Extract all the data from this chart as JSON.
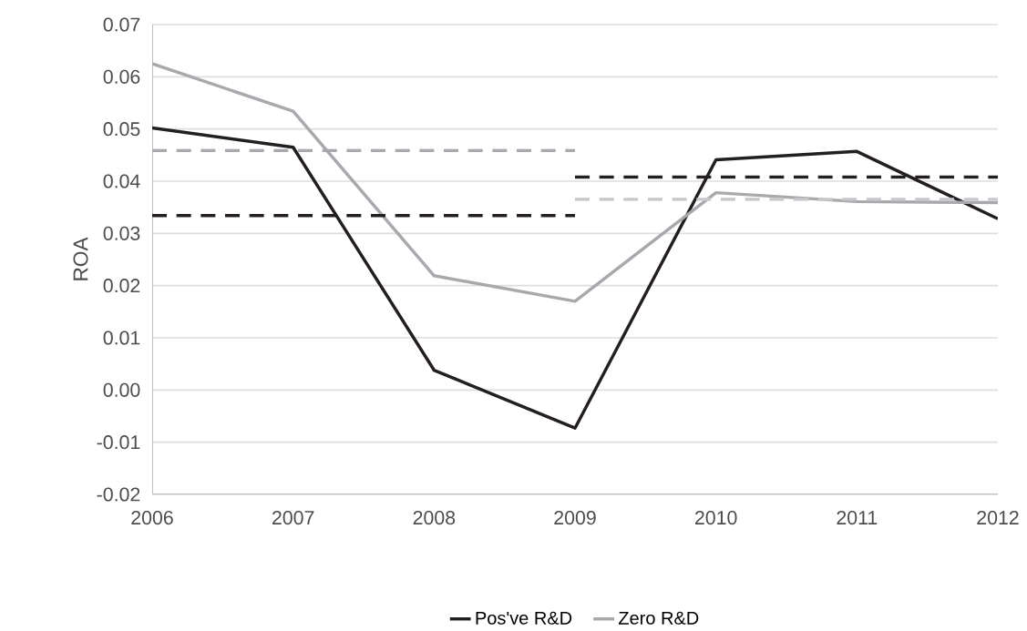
{
  "chart_data": {
    "type": "line",
    "ylabel": "ROA",
    "xlim": [
      2006,
      2012
    ],
    "xticks": [
      2006,
      2007,
      2008,
      2009,
      2010,
      2011,
      2012
    ],
    "ylim": [
      -0.02,
      0.07
    ],
    "yticks": [
      {
        "value": 0.07,
        "label": "0.07"
      },
      {
        "value": 0.06,
        "label": "0.06"
      },
      {
        "value": 0.05,
        "label": "0.05"
      },
      {
        "value": 0.04,
        "label": "0.04"
      },
      {
        "value": 0.03,
        "label": "0.03"
      },
      {
        "value": 0.02,
        "label": "0.02"
      },
      {
        "value": 0.01,
        "label": "0.01"
      },
      {
        "value": 0,
        "label": "0.00"
      },
      {
        "value": -0.01,
        "label": "-0.01"
      },
      {
        "value": -0.02,
        "label": "-0.02"
      }
    ],
    "grid": "y",
    "legend": "bottom",
    "marker": "none",
    "series": [
      {
        "name": "Pos've R&D",
        "color": "#231f20",
        "x": [
          2006,
          2007,
          2008,
          2009,
          2010,
          2011,
          2012
        ],
        "values": [
          0.0502,
          0.0465,
          0.0038,
          -0.0073,
          0.0441,
          0.0457,
          0.0328
        ]
      },
      {
        "name": "Zero R&D",
        "color": "#a7a9ac",
        "x": [
          2006,
          2007,
          2008,
          2009,
          2010,
          2011,
          2012
        ],
        "values": [
          0.0625,
          0.0534,
          0.0219,
          0.017,
          0.0378,
          0.0361,
          0.0359
        ]
      },
      {
        "color": "#a7a9ac",
        "line_style": "dashed",
        "x": [
          2006,
          2009
        ],
        "values": [
          0.0459,
          0.0459
        ]
      },
      {
        "color": "#231f20",
        "line_style": "dashed",
        "x": [
          2006,
          2009
        ],
        "values": [
          0.0334,
          0.0334
        ]
      },
      {
        "color": "#231f20",
        "line_style": "dashed",
        "x": [
          2009,
          2012
        ],
        "values": [
          0.0408,
          0.0408
        ]
      },
      {
        "color": "#c7c8ca",
        "line_style": "dashed",
        "x": [
          2009,
          2012
        ],
        "values": [
          0.0365,
          0.0365
        ]
      }
    ]
  }
}
